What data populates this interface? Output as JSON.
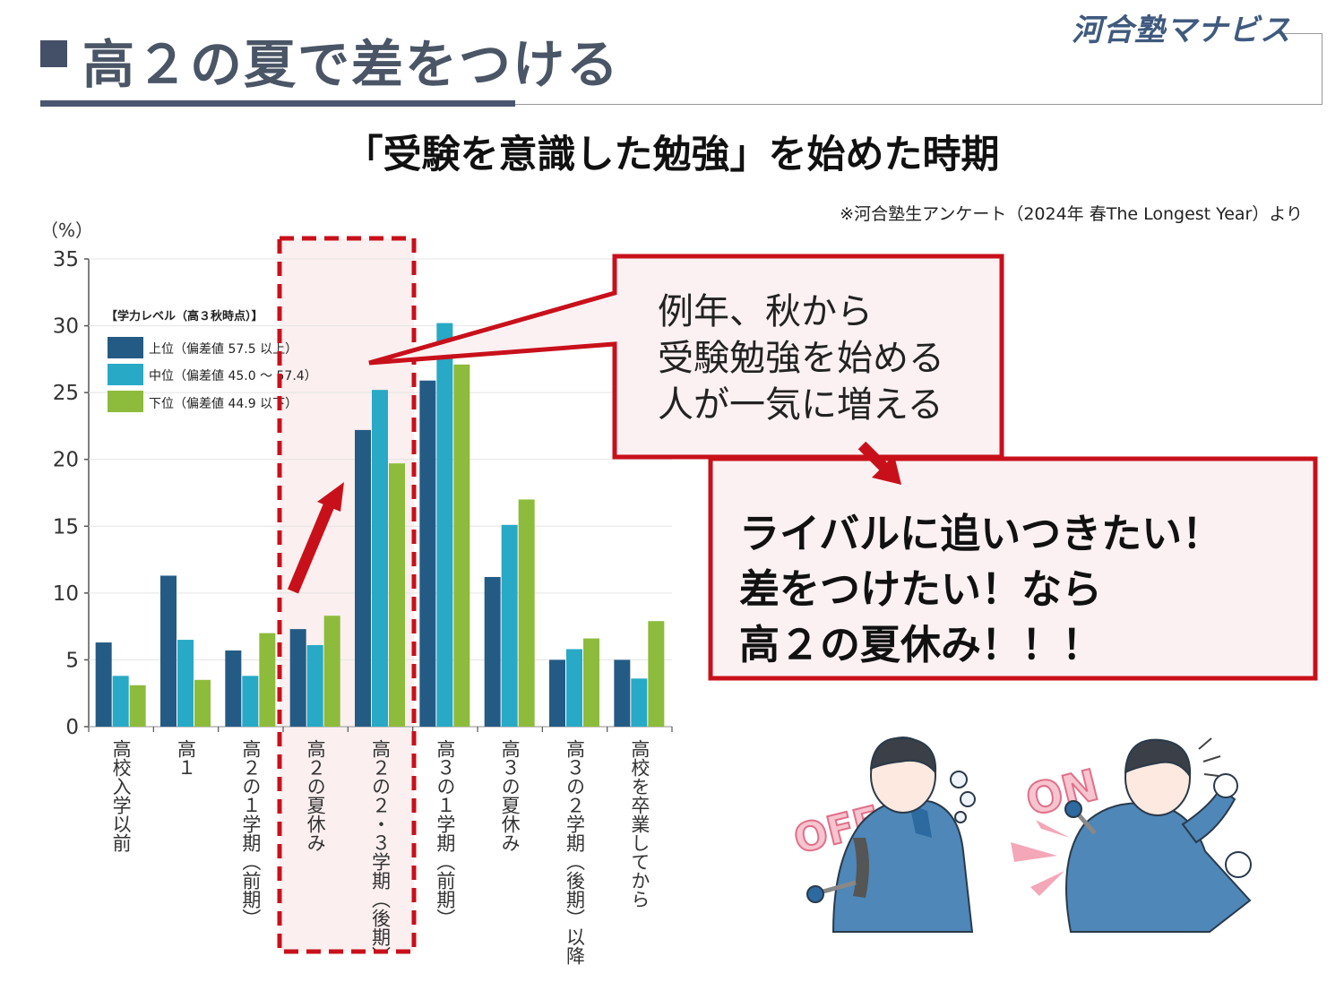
{
  "header": {
    "title": "高２の夏で差をつける",
    "logo": "河合塾マナビス"
  },
  "source_note": "※河合塾生アンケート（2024年 春The Longest Year）より",
  "callout1": {
    "lines": [
      "例年、秋から",
      "受験勉強を始める",
      "人が一気に増える"
    ]
  },
  "callout2": {
    "lines": [
      "ライバルに追いつきたい！",
      "差をつけたい！なら",
      "高２の夏休み！！！"
    ]
  },
  "illustration": {
    "off_label": "OFF",
    "on_label": "ON"
  },
  "colors": {
    "upper": "#245b85",
    "middle": "#28a9c6",
    "lower": "#8dbb3b",
    "accent_red": "#c8101b",
    "callout_fill": "#fcf1f2",
    "highlight_fill": "#fbefef"
  },
  "chart_data": {
    "type": "bar",
    "title": "「受験を意識した勉強」を始めた時期",
    "ylabel": "（%）",
    "ylim": [
      0,
      35
    ],
    "yticks": [
      0,
      5,
      10,
      15,
      20,
      25,
      30,
      35
    ],
    "legend_title": "【学力レベル（高３秋時点）】",
    "legend_position": "top-left",
    "categories": [
      "高校入学以前",
      "高１",
      "高２の１学期（前期）",
      "高２の夏休み",
      "高２の２・３学期（後期）",
      "高３の１学期（前期）",
      "高３の夏休み",
      "高３の２学期（後期）以降",
      "高校を卒業してから"
    ],
    "series": [
      {
        "name": "上位（偏差値 57.5 以上）",
        "color": "#245b85",
        "values": [
          6.3,
          11.3,
          5.7,
          7.3,
          22.2,
          25.9,
          11.2,
          5.0,
          5.0
        ]
      },
      {
        "name": "中位（偏差値 45.0 ～ 57.4）",
        "color": "#28a9c6",
        "values": [
          3.8,
          6.5,
          3.8,
          6.1,
          25.2,
          30.2,
          15.1,
          5.8,
          3.6
        ]
      },
      {
        "name": "下位（偏差値 44.9 以下）",
        "color": "#8dbb3b",
        "values": [
          3.1,
          3.5,
          7.0,
          8.3,
          19.7,
          27.1,
          17.0,
          6.6,
          7.9
        ]
      }
    ],
    "highlight_category": "高２の２・３学期（後期）"
  }
}
